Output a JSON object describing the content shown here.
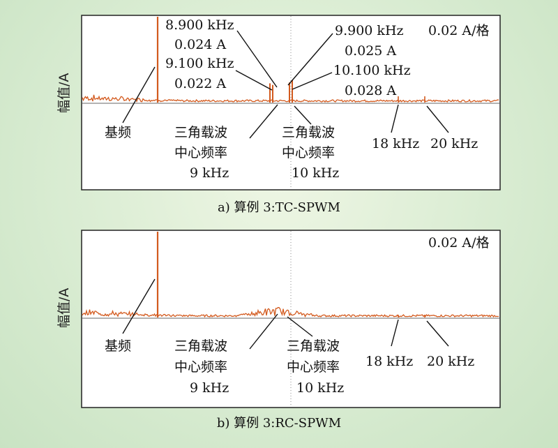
{
  "y_axis_label": "幅值/A",
  "scale_label": "0.02 A/格",
  "colors": {
    "trace": "#d35a1e",
    "frame": "#222222",
    "background": "#d9ecd2"
  },
  "chart_data": [
    {
      "type": "line",
      "caption": "a) 算例 3:TC-SPWM",
      "ylabel": "幅值/A",
      "scale": "0.02 A/格",
      "annotations": {
        "fundamental": "基频",
        "carrier9_lines": [
          "三角载波",
          "中心频率",
          "9 kHz"
        ],
        "carrier10_lines": [
          "三角载波",
          "中心频率",
          "10 kHz"
        ],
        "h18": "18 kHz",
        "h20": "20 kHz",
        "p8900": [
          "8.900 kHz",
          "0.024 A"
        ],
        "p9100": [
          "9.100 kHz",
          "0.022 A"
        ],
        "p9900": [
          "9.900 kHz",
          "0.025 A"
        ],
        "p10100": [
          "10.100 kHz",
          "0.028 A"
        ]
      },
      "peaks": [
        {
          "freq_khz": 8.9,
          "amp_a": 0.024
        },
        {
          "freq_khz": 9.1,
          "amp_a": 0.022
        },
        {
          "freq_khz": 9.9,
          "amp_a": 0.025
        },
        {
          "freq_khz": 10.1,
          "amp_a": 0.028
        }
      ]
    },
    {
      "type": "line",
      "caption": "b) 算例 3:RC-SPWM",
      "ylabel": "幅值/A",
      "scale": "0.02 A/格",
      "annotations": {
        "fundamental": "基频",
        "carrier9_lines": [
          "三角载波",
          "中心频率",
          "9 kHz"
        ],
        "carrier10_lines": [
          "三角载波",
          "中心频率",
          "10 kHz"
        ],
        "h18": "18 kHz",
        "h20": "20 kHz"
      }
    }
  ]
}
